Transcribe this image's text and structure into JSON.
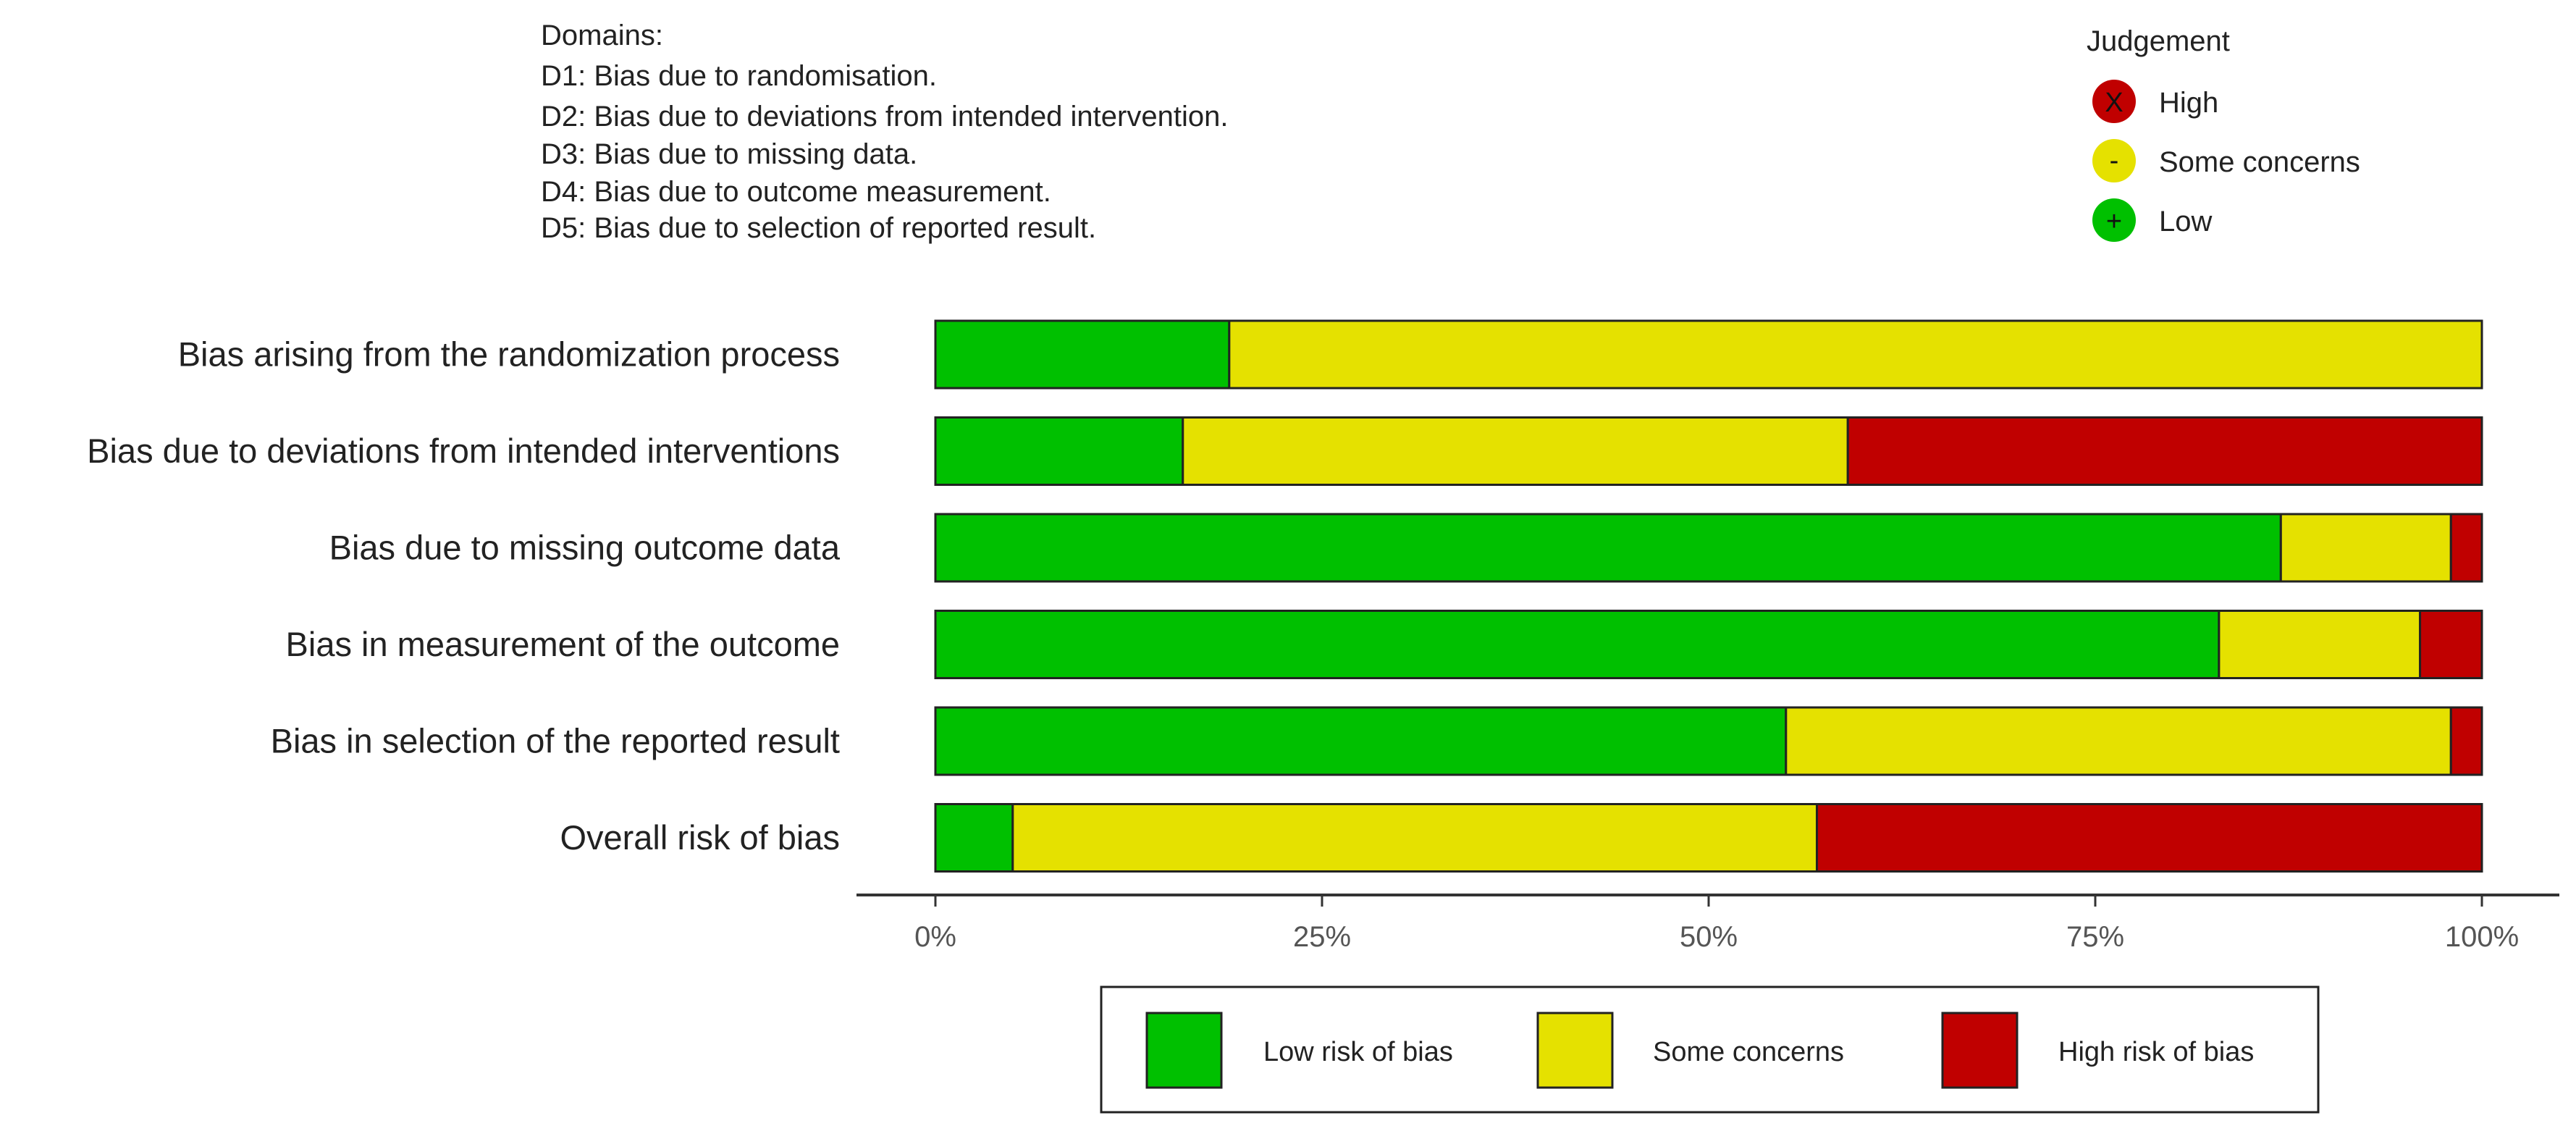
{
  "domains_note": {
    "title": "Domains:",
    "lines": [
      "D1: Bias due to randomisation.",
      "D2: Bias due to deviations from intended intervention.",
      "D3: Bias due to missing data.",
      "D4: Bias due to outcome measurement.",
      "D5: Bias due to selection of reported result."
    ]
  },
  "judgement_key": {
    "title": "Judgement",
    "items": [
      {
        "symbol": "X",
        "label": "High",
        "color": "#c00000"
      },
      {
        "symbol": "-",
        "label": "Some concerns",
        "color": "#e5e100"
      },
      {
        "symbol": "+",
        "label": "Low",
        "color": "#00c000"
      }
    ]
  },
  "chart_data": {
    "type": "bar",
    "orientation": "horizontal",
    "stacked": true,
    "categories": [
      "Bias arising from the randomization process",
      "Bias due to deviations from intended interventions",
      "Bias due to missing outcome data",
      "Bias in measurement of the outcome",
      "Bias in selection of the reported result",
      "Overall risk of bias"
    ],
    "series": [
      {
        "name": "Low risk of bias",
        "color": "#00c000",
        "values": [
          19,
          16,
          87,
          83,
          55,
          5
        ]
      },
      {
        "name": "Some concerns",
        "color": "#e5e100",
        "values": [
          81,
          43,
          11,
          13,
          43,
          52
        ]
      },
      {
        "name": "High risk of bias",
        "color": "#c00000",
        "values": [
          0,
          41,
          2,
          4,
          2,
          43
        ]
      }
    ],
    "xlim": [
      0,
      100
    ],
    "x_ticks": [
      0,
      25,
      50,
      75,
      100
    ],
    "x_tick_labels": [
      "0%",
      "25%",
      "50%",
      "75%",
      "100%"
    ],
    "xlabel": "",
    "ylabel": "",
    "legend_position": "bottom"
  }
}
